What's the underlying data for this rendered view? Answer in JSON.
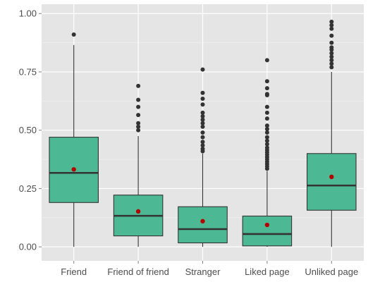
{
  "chart_data": {
    "type": "box",
    "title": "",
    "xlabel": "",
    "ylabel": "",
    "ylim": [
      -0.06,
      1.04
    ],
    "y_ticks": [
      0,
      0.25,
      0.5,
      0.75,
      1.0
    ],
    "y_tick_labels": [
      "0.00",
      "0.25",
      "0.50",
      "0.75",
      "1.00"
    ],
    "grid": true,
    "legend": "none",
    "colors": {
      "panel_bg": "#e5e5e5",
      "grid": "#ffffff",
      "box_fill": "#4db894",
      "box_stroke": "#333333",
      "median": "#333333",
      "outlier": "#333333",
      "mean_point": "#b30000",
      "tick_text": "#4d4d4d",
      "tick_mark": "#7f7f7f"
    },
    "categories": [
      "Friend",
      "Friend of friend",
      "Stranger",
      "Liked page",
      "Unliked page"
    ],
    "boxes": [
      {
        "category": "Friend",
        "whisker_low": 0.0,
        "q1": 0.19,
        "median": 0.317,
        "q3": 0.47,
        "whisker_high": 0.865,
        "mean": 0.332,
        "outliers": [
          0.91
        ]
      },
      {
        "category": "Friend of friend",
        "whisker_low": 0.0,
        "q1": 0.047,
        "median": 0.133,
        "q3": 0.222,
        "whisker_high": 0.475,
        "mean": 0.152,
        "outliers": [
          0.5,
          0.515,
          0.53,
          0.565,
          0.6,
          0.63,
          0.69
        ]
      },
      {
        "category": "Stranger",
        "whisker_low": 0.0,
        "q1": 0.017,
        "median": 0.076,
        "q3": 0.172,
        "whisker_high": 0.4,
        "mean": 0.11,
        "outliers": [
          0.41,
          0.42,
          0.435,
          0.45,
          0.47,
          0.49,
          0.515,
          0.53,
          0.545,
          0.56,
          0.575,
          0.61,
          0.635,
          0.66,
          0.76
        ]
      },
      {
        "category": "Liked page",
        "whisker_low": 0.0,
        "q1": 0.004,
        "median": 0.055,
        "q3": 0.132,
        "whisker_high": 0.325,
        "mean": 0.094,
        "outliers": [
          0.335,
          0.345,
          0.355,
          0.365,
          0.375,
          0.385,
          0.395,
          0.405,
          0.415,
          0.425,
          0.44,
          0.455,
          0.47,
          0.49,
          0.505,
          0.52,
          0.55,
          0.575,
          0.6,
          0.65,
          0.655,
          0.68,
          0.71,
          0.8
        ]
      },
      {
        "category": "Unliked page",
        "whisker_low": 0.0,
        "q1": 0.157,
        "median": 0.263,
        "q3": 0.4,
        "whisker_high": 0.75,
        "mean": 0.3,
        "outliers": [
          0.77,
          0.785,
          0.8,
          0.815,
          0.83,
          0.845,
          0.855,
          0.875,
          0.905,
          0.935,
          0.95,
          0.965
        ]
      }
    ]
  }
}
